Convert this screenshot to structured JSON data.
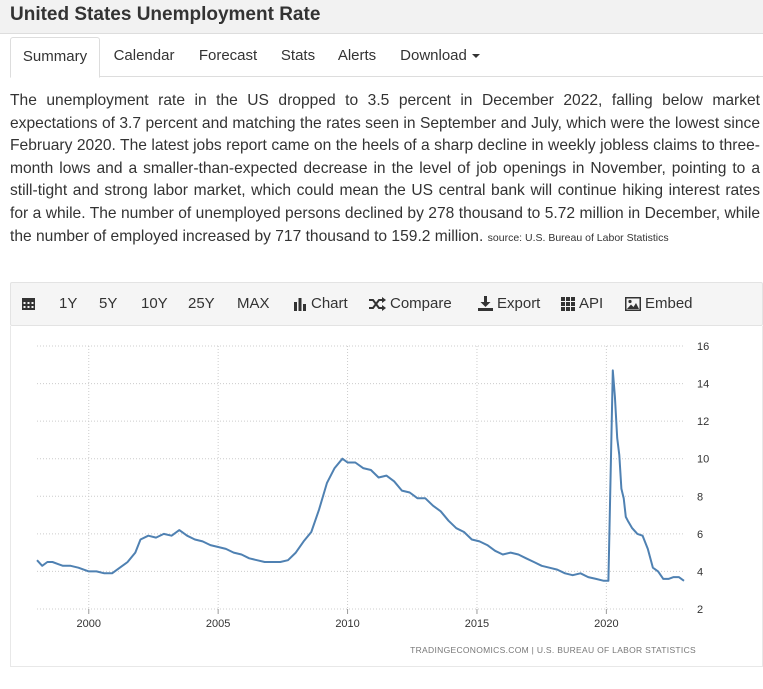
{
  "page_title": "United States Unemployment Rate",
  "tabs": [
    {
      "label": "Summary",
      "active": true
    },
    {
      "label": "Calendar"
    },
    {
      "label": "Forecast"
    },
    {
      "label": "Stats"
    },
    {
      "label": "Alerts"
    },
    {
      "label": "Download"
    }
  ],
  "description": "The unemployment rate in the US dropped to 3.5 percent in December 2022, falling below market expectations of 3.7 percent and matching the rates seen in September and July, which were the lowest since February 2020. The latest jobs report came on the heels of a sharp decline in weekly jobless claims to three-month lows and a smaller-than-expected decrease in the level of job openings in November, pointing to a still-tight and strong labor market, which could mean the US central bank will continue hiking interest rates for a while. The number of unemployed persons declined by 278 thousand to 5.72 million in December, while the number of employed increased by 717 thousand to 159.2 million.",
  "source": "source: U.S. Bureau of Labor Statistics",
  "toolbar": {
    "calendar_icon": "calendar-icon",
    "ranges": [
      "1Y",
      "5Y",
      "10Y",
      "25Y",
      "MAX"
    ],
    "chart_label": "Chart",
    "compare_label": "Compare",
    "export_label": "Export",
    "api_label": "API",
    "embed_label": "Embed"
  },
  "credit": "TRADINGECONOMICS.COM  |  U.S. BUREAU OF LABOR STATISTICS",
  "colors": {
    "line": "#4f81b2",
    "grid": "#cccccc"
  },
  "chart_data": {
    "type": "line",
    "title": "",
    "xlabel": "",
    "ylabel": "",
    "x_ticks": [
      "2000",
      "2005",
      "2010",
      "2015",
      "2020"
    ],
    "y_ticks": [
      "2",
      "4",
      "6",
      "8",
      "10",
      "12",
      "14",
      "16"
    ],
    "xlim": [
      1998.0,
      2023.0
    ],
    "ylim": [
      2,
      16
    ],
    "grid": true,
    "series": [
      {
        "x": [
          1998.0,
          1998.2,
          1998.4,
          1998.6,
          1998.8,
          1999.0,
          1999.3,
          1999.6,
          2000.0,
          2000.3,
          2000.6,
          2000.9,
          2001.2,
          2001.5,
          2001.8,
          2002.0,
          2002.3,
          2002.6,
          2002.9,
          2003.2,
          2003.5,
          2003.8,
          2004.1,
          2004.4,
          2004.7,
          2005.0,
          2005.3,
          2005.6,
          2005.9,
          2006.2,
          2006.5,
          2006.8,
          2007.1,
          2007.4,
          2007.7,
          2008.0,
          2008.3,
          2008.6,
          2008.9,
          2009.2,
          2009.5,
          2009.8,
          2010.0,
          2010.3,
          2010.6,
          2010.9,
          2011.2,
          2011.5,
          2011.8,
          2012.1,
          2012.4,
          2012.7,
          2013.0,
          2013.3,
          2013.6,
          2013.9,
          2014.2,
          2014.5,
          2014.8,
          2015.1,
          2015.4,
          2015.7,
          2016.0,
          2016.3,
          2016.6,
          2016.9,
          2017.2,
          2017.5,
          2017.8,
          2018.1,
          2018.4,
          2018.7,
          2019.0,
          2019.3,
          2019.6,
          2019.9,
          2020.08,
          2020.25,
          2020.33,
          2020.42,
          2020.5,
          2020.58,
          2020.67,
          2020.75,
          2020.83,
          2021.0,
          2021.2,
          2021.4,
          2021.6,
          2021.8,
          2022.0,
          2022.2,
          2022.4,
          2022.6,
          2022.8,
          2023.0
        ],
        "values": [
          4.6,
          4.3,
          4.5,
          4.5,
          4.4,
          4.3,
          4.3,
          4.2,
          4.0,
          4.0,
          3.9,
          3.9,
          4.2,
          4.5,
          5.0,
          5.7,
          5.9,
          5.8,
          6.0,
          5.9,
          6.2,
          5.9,
          5.7,
          5.6,
          5.4,
          5.3,
          5.2,
          5.0,
          4.9,
          4.7,
          4.6,
          4.5,
          4.5,
          4.5,
          4.6,
          5.0,
          5.6,
          6.1,
          7.3,
          8.7,
          9.5,
          10.0,
          9.8,
          9.8,
          9.5,
          9.4,
          9.0,
          9.1,
          8.8,
          8.3,
          8.2,
          7.9,
          7.9,
          7.5,
          7.2,
          6.7,
          6.3,
          6.1,
          5.7,
          5.6,
          5.4,
          5.1,
          4.9,
          5.0,
          4.9,
          4.7,
          4.5,
          4.3,
          4.2,
          4.1,
          3.9,
          3.8,
          3.9,
          3.7,
          3.6,
          3.5,
          3.5,
          14.7,
          13.3,
          11.1,
          10.2,
          8.4,
          7.9,
          6.9,
          6.7,
          6.3,
          6.0,
          5.9,
          5.2,
          4.2,
          4.0,
          3.6,
          3.6,
          3.7,
          3.7,
          3.5
        ]
      }
    ]
  }
}
